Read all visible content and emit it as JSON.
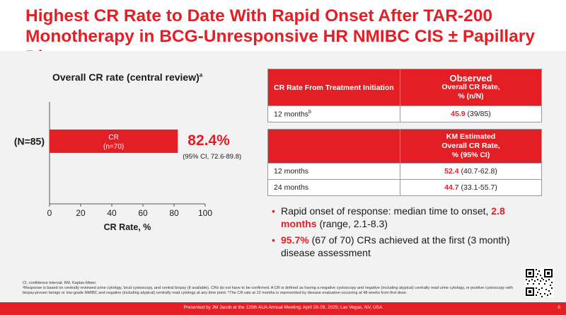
{
  "title": {
    "line1": "Highest CR Rate to Date With Rapid Onset After TAR-200",
    "line2": "Monotherapy in BCG-Unresponsive HR NMIBC CIS ± Papillary Disease"
  },
  "chart": {
    "title": "Overall CR rate (central review)",
    "title_sup": "a"
  },
  "chart_data": {
    "type": "bar",
    "orientation": "horizontal",
    "categories": [
      "(N=85)"
    ],
    "values": [
      82.4
    ],
    "bar_label_line1": "CR",
    "bar_label_line2": "(n=70)",
    "value_label": "82.4%",
    "ci_label": "(95% CI, 72.6-89.8)",
    "xlabel": "CR Rate, %",
    "xlim": [
      0,
      100
    ],
    "xticks": [
      "0",
      "20",
      "40",
      "60",
      "80",
      "100"
    ],
    "bar_color": "#e31e24"
  },
  "table1": {
    "header_left": "CR Rate From Treatment Initiation",
    "header_right_line1": "Observed",
    "header_right_line2": "Overall CR Rate,",
    "header_right_line3": "% (n/N)",
    "rows": [
      {
        "label": "12 months",
        "sup": "b",
        "value": "45.9",
        "detail": "(39/85)"
      }
    ]
  },
  "table2": {
    "header_right_line1": "KM Estimated",
    "header_right_line2": "Overall CR Rate,",
    "header_right_line3": "% (95% CI)",
    "rows": [
      {
        "label": "12 months",
        "value": "52.4",
        "detail": "(40.7-62.8)"
      },
      {
        "label": "24 months",
        "value": "44.7",
        "detail": "(33.1-55.7)"
      }
    ]
  },
  "bullets": [
    {
      "pre": "Rapid onset of response: median time to onset, ",
      "highlight": "2.8 months",
      "post": " (range, 2.1-8.3)"
    },
    {
      "pre": "",
      "highlight": "95.7%",
      "post": " (67 of 70) CRs achieved at the first (3 month) disease assessment"
    }
  ],
  "footnotes": {
    "line1": "CI, confidence interval; KM, Kaplan-Meier.",
    "line2": "ᵃResponse is based on centrally reviewed urine cytology, local cystoscopy, and central biopsy (if available). CRs do not have to be confirmed. A CR is defined as having a negative cystoscopy and negative (including atypical) centrally read urine cytology, or positive cystoscopy with biopsy-proven benign or low-grade NMIBC and negative (including atypical) centrally read cytology at any time point. ᵇThe CR rate at 12 months is represented by disease evaluation occurring at 48 weeks from first dose."
  },
  "footer": {
    "text": "Presented by JM Jacob at the 120th AUA Annual Meeting; April 26-29, 2025; Las Vegas, NV, USA",
    "page": "6"
  },
  "colors": {
    "accent": "#e31e24"
  },
  "qr_icon": "qr-code-icon"
}
